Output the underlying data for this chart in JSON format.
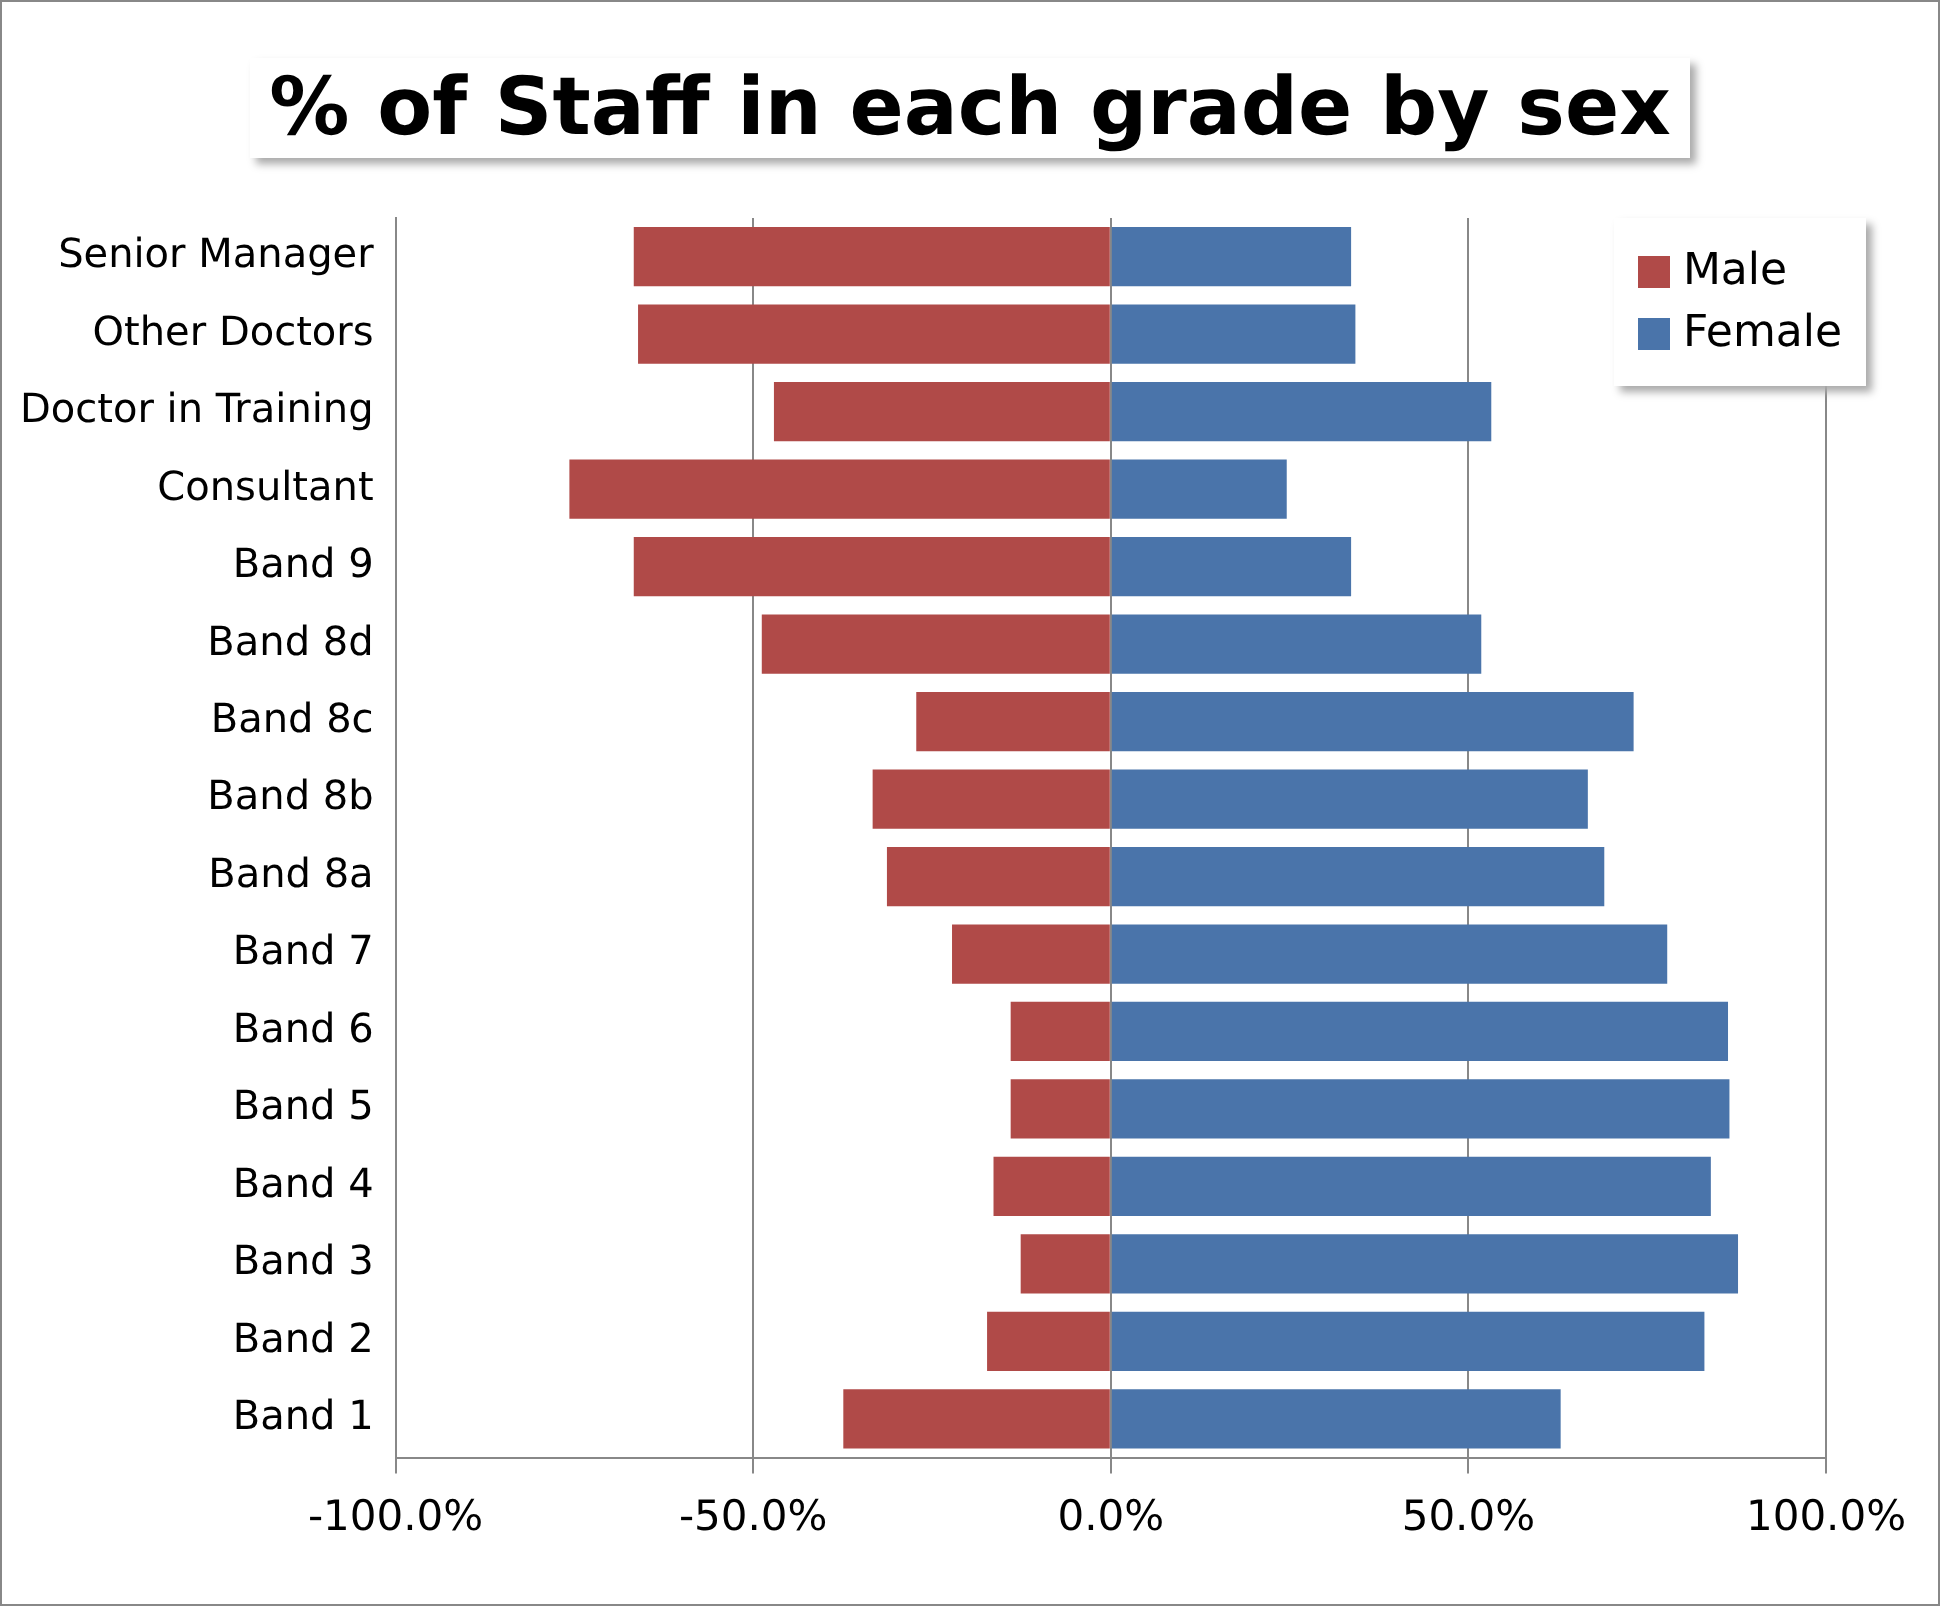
{
  "chart_data": {
    "type": "bar",
    "title": "% of Staff in each grade by sex",
    "orientation": "horizontal",
    "stacked": true,
    "categories": [
      "Senior Manager",
      "Other Doctors",
      "Doctor in Training",
      "Consultant",
      "Band 9",
      "Band 8d",
      "Band 8c",
      "Band 8b",
      "Band 8a",
      "Band 7",
      "Band 6",
      "Band 5",
      "Band 4",
      "Band 3",
      "Band 2",
      "Band 1"
    ],
    "series": [
      {
        "name": "Male",
        "color": "#b04a48",
        "values": [
          -66.7,
          -66.1,
          -47.1,
          -75.7,
          -66.7,
          -48.8,
          -27.2,
          -33.3,
          -31.3,
          -22.2,
          -14.0,
          -14.0,
          -16.4,
          -12.6,
          -17.3,
          -37.4
        ]
      },
      {
        "name": "Female",
        "color": "#4a74aa",
        "values": [
          33.6,
          34.2,
          53.2,
          24.6,
          33.6,
          51.8,
          73.1,
          66.7,
          69.0,
          77.8,
          86.3,
          86.5,
          83.9,
          87.7,
          83.0,
          62.9
        ]
      }
    ],
    "xlim": [
      -100,
      100
    ],
    "xticks": [
      {
        "value": -100,
        "label": "-100.0%"
      },
      {
        "value": -50,
        "label": "-50.0%"
      },
      {
        "value": 0,
        "label": "0.0%"
      },
      {
        "value": 50,
        "label": "50.0%"
      },
      {
        "value": 100,
        "label": "100.0%"
      }
    ],
    "grid": "x",
    "legend": "top right"
  }
}
